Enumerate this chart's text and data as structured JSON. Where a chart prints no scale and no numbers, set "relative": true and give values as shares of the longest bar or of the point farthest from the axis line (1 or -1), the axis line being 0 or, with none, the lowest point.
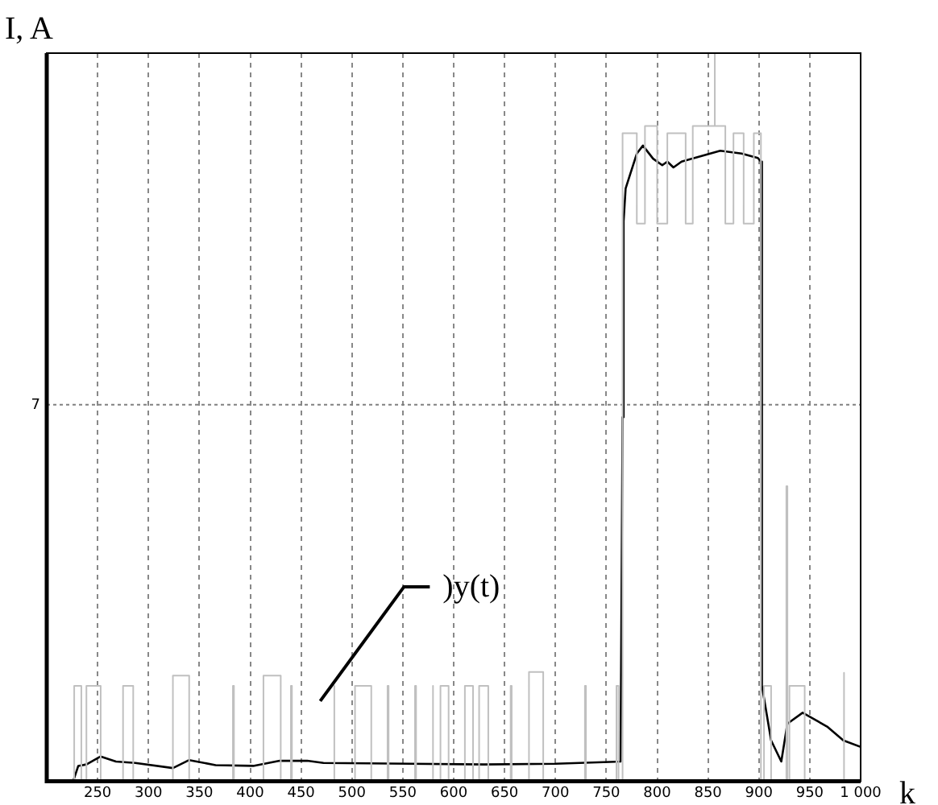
{
  "chart_data": {
    "type": "line",
    "relative": true,
    "xlabel": "k",
    "ylabel": "I, A",
    "grid": "x",
    "legend": false,
    "marker": "none",
    "line_style": "solid",
    "xlim": [
      200,
      1000
    ],
    "xticks": [
      250,
      300,
      350,
      400,
      450,
      500,
      550,
      600,
      650,
      700,
      750,
      800,
      850,
      900,
      950,
      {
        "value": 1000,
        "label": "1 000"
      }
    ],
    "ref_lines": [
      {
        "axis": "y",
        "value": 0.517,
        "color": "#808080",
        "line_style": "dotted"
      }
    ],
    "annotations": [
      "7",
      ")y(t)"
    ],
    "series": [
      {
        "color": "#c0c0c0",
        "x": [
          200,
          227,
          227,
          234,
          234,
          239,
          239,
          253,
          253,
          275,
          275,
          285,
          285,
          324,
          324,
          340,
          340,
          383,
          383,
          384,
          384,
          413,
          413,
          430,
          430,
          440,
          440,
          441,
          441,
          482,
          482,
          483,
          483,
          503,
          503,
          519,
          519,
          535,
          535,
          536,
          536,
          562,
          562,
          563,
          563,
          579,
          579,
          580,
          580,
          587,
          587,
          595,
          595,
          611,
          611,
          619,
          619,
          625,
          625,
          634,
          634,
          656,
          656,
          657,
          657,
          674,
          674,
          688,
          688,
          729,
          729,
          730,
          730,
          760,
          760,
          762,
          762,
          766,
          766,
          780,
          780,
          788,
          788,
          800,
          800,
          810,
          810,
          828,
          828,
          835,
          835,
          856,
          856,
          857,
          857,
          867,
          867,
          875,
          875,
          885,
          885,
          895,
          895,
          902,
          902,
          905,
          905,
          912,
          912,
          927,
          927,
          928,
          928,
          930,
          930,
          945,
          945,
          983,
          983,
          984,
          984,
          1000
        ],
        "values": [
          0,
          0,
          0.131,
          0.131,
          0,
          0,
          0.131,
          0.131,
          0,
          0,
          0.131,
          0.131,
          0,
          0,
          0.145,
          0.145,
          0,
          0,
          0.131,
          0.131,
          0,
          0,
          0.145,
          0.145,
          0,
          0,
          0.131,
          0.131,
          0,
          0,
          0.131,
          0.131,
          0,
          0,
          0.131,
          0.131,
          0,
          0,
          0.131,
          0.131,
          0,
          0,
          0.131,
          0.131,
          0,
          0,
          0.131,
          0.131,
          0,
          0,
          0.131,
          0.131,
          0,
          0,
          0.131,
          0.131,
          0,
          0,
          0.131,
          0.131,
          0,
          0,
          0.131,
          0.131,
          0,
          0,
          0.15,
          0.15,
          0,
          0,
          0.131,
          0.131,
          0,
          0,
          0.131,
          0.131,
          0,
          0,
          0.89,
          0.89,
          0.766,
          0.766,
          0.9,
          0.9,
          0.766,
          0.766,
          0.89,
          0.89,
          0.766,
          0.766,
          0.9,
          0.9,
          1.0,
          1.0,
          0.9,
          0.9,
          0.766,
          0.766,
          0.89,
          0.89,
          0.766,
          0.766,
          0.89,
          0.89,
          0,
          0,
          0.131,
          0.131,
          0,
          0,
          0.405,
          0.405,
          0,
          0,
          0.131,
          0.131,
          0,
          0,
          0.149,
          0.149,
          0,
          0
        ]
      },
      {
        "color": "#000000",
        "x": [
          226,
          231,
          239,
          253,
          268,
          287,
          324,
          340,
          366,
          403,
          429,
          456,
          472,
          630,
          700,
          764,
          766,
          767,
          769,
          774,
          780,
          786,
          796,
          805,
          810,
          816,
          824,
          862,
          883,
          899,
          902,
          903,
          912,
          922,
          928,
          943,
          967,
          983,
          1000
        ],
        "values": [
          0,
          0.021,
          0.023,
          0.034,
          0.027,
          0.025,
          0.018,
          0.029,
          0.022,
          0.021,
          0.028,
          0.028,
          0.025,
          0.023,
          0.024,
          0.027,
          0.5,
          0.769,
          0.814,
          0.836,
          0.862,
          0.873,
          0.855,
          0.846,
          0.851,
          0.843,
          0.851,
          0.866,
          0.862,
          0.856,
          0.851,
          0.131,
          0.056,
          0.027,
          0.079,
          0.094,
          0.075,
          0.056,
          0.047
        ]
      }
    ]
  }
}
